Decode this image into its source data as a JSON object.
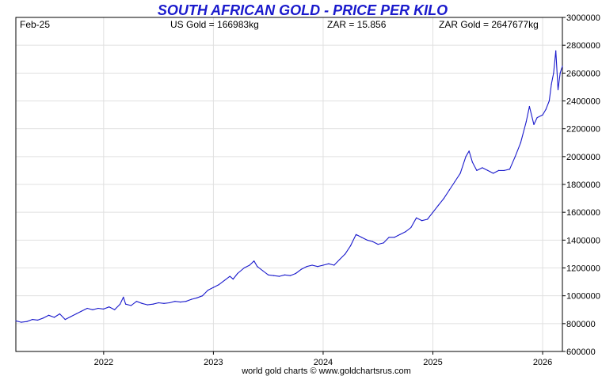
{
  "colors": {
    "line": "#1a1acc",
    "title": "#1a1acc",
    "grid": "#e0e0e0",
    "frame": "#000000"
  },
  "chart_data": {
    "type": "line",
    "title": "SOUTH AFRICAN GOLD - PRICE PER KILO",
    "header": {
      "date": "Feb-25",
      "us_gold": "US Gold = 166983kg",
      "zar": "ZAR = 15.856",
      "zar_gold": "ZAR Gold = 2647677kg"
    },
    "credit": "world gold charts © www.goldchartsrus.com",
    "xlim": [
      2021.2,
      2026.18
    ],
    "ylim": [
      600000,
      3000000
    ],
    "grid": true,
    "x_ticks": [
      {
        "value": 2022,
        "label": "2022"
      },
      {
        "value": 2023,
        "label": "2023"
      },
      {
        "value": 2024,
        "label": "2024"
      },
      {
        "value": 2025,
        "label": "2025"
      },
      {
        "value": 2026,
        "label": "2026"
      }
    ],
    "y_ticks": [
      {
        "value": 600000,
        "label": "600000"
      },
      {
        "value": 800000,
        "label": "800000"
      },
      {
        "value": 1000000,
        "label": "1000000"
      },
      {
        "value": 1200000,
        "label": "1200000"
      },
      {
        "value": 1400000,
        "label": "1400000"
      },
      {
        "value": 1600000,
        "label": "1600000"
      },
      {
        "value": 1800000,
        "label": "1800000"
      },
      {
        "value": 2000000,
        "label": "2000000"
      },
      {
        "value": 2200000,
        "label": "2200000"
      },
      {
        "value": 2400000,
        "label": "2400000"
      },
      {
        "value": 2600000,
        "label": "2600000"
      },
      {
        "value": 2800000,
        "label": "2800000"
      },
      {
        "value": 3000000,
        "label": "3000000"
      }
    ],
    "series": [
      {
        "points": [
          [
            2021.2,
            820000
          ],
          [
            2021.25,
            810000
          ],
          [
            2021.3,
            815000
          ],
          [
            2021.35,
            830000
          ],
          [
            2021.4,
            825000
          ],
          [
            2021.45,
            840000
          ],
          [
            2021.5,
            860000
          ],
          [
            2021.55,
            845000
          ],
          [
            2021.6,
            870000
          ],
          [
            2021.65,
            830000
          ],
          [
            2021.7,
            850000
          ],
          [
            2021.75,
            870000
          ],
          [
            2021.8,
            890000
          ],
          [
            2021.85,
            910000
          ],
          [
            2021.9,
            900000
          ],
          [
            2021.95,
            910000
          ],
          [
            2022.0,
            905000
          ],
          [
            2022.05,
            920000
          ],
          [
            2022.1,
            900000
          ],
          [
            2022.15,
            940000
          ],
          [
            2022.18,
            990000
          ],
          [
            2022.2,
            940000
          ],
          [
            2022.25,
            930000
          ],
          [
            2022.3,
            960000
          ],
          [
            2022.35,
            945000
          ],
          [
            2022.4,
            935000
          ],
          [
            2022.45,
            940000
          ],
          [
            2022.5,
            950000
          ],
          [
            2022.55,
            945000
          ],
          [
            2022.6,
            950000
          ],
          [
            2022.65,
            960000
          ],
          [
            2022.7,
            955000
          ],
          [
            2022.75,
            960000
          ],
          [
            2022.8,
            975000
          ],
          [
            2022.85,
            985000
          ],
          [
            2022.9,
            1000000
          ],
          [
            2022.95,
            1040000
          ],
          [
            2023.0,
            1060000
          ],
          [
            2023.05,
            1080000
          ],
          [
            2023.1,
            1110000
          ],
          [
            2023.15,
            1140000
          ],
          [
            2023.18,
            1120000
          ],
          [
            2023.22,
            1160000
          ],
          [
            2023.28,
            1200000
          ],
          [
            2023.33,
            1220000
          ],
          [
            2023.37,
            1250000
          ],
          [
            2023.4,
            1210000
          ],
          [
            2023.45,
            1180000
          ],
          [
            2023.5,
            1150000
          ],
          [
            2023.55,
            1145000
          ],
          [
            2023.6,
            1140000
          ],
          [
            2023.65,
            1150000
          ],
          [
            2023.7,
            1145000
          ],
          [
            2023.75,
            1160000
          ],
          [
            2023.8,
            1190000
          ],
          [
            2023.85,
            1210000
          ],
          [
            2023.9,
            1220000
          ],
          [
            2023.95,
            1210000
          ],
          [
            2024.0,
            1220000
          ],
          [
            2024.05,
            1230000
          ],
          [
            2024.1,
            1220000
          ],
          [
            2024.15,
            1260000
          ],
          [
            2024.2,
            1300000
          ],
          [
            2024.25,
            1360000
          ],
          [
            2024.3,
            1440000
          ],
          [
            2024.35,
            1420000
          ],
          [
            2024.4,
            1400000
          ],
          [
            2024.45,
            1390000
          ],
          [
            2024.5,
            1370000
          ],
          [
            2024.55,
            1380000
          ],
          [
            2024.6,
            1420000
          ],
          [
            2024.65,
            1420000
          ],
          [
            2024.7,
            1440000
          ],
          [
            2024.75,
            1460000
          ],
          [
            2024.8,
            1490000
          ],
          [
            2024.85,
            1560000
          ],
          [
            2024.9,
            1540000
          ],
          [
            2024.95,
            1550000
          ],
          [
            2025.0,
            1600000
          ],
          [
            2025.05,
            1650000
          ],
          [
            2025.1,
            1700000
          ],
          [
            2025.15,
            1760000
          ],
          [
            2025.2,
            1820000
          ],
          [
            2025.25,
            1880000
          ],
          [
            2025.3,
            2000000
          ],
          [
            2025.33,
            2040000
          ],
          [
            2025.36,
            1960000
          ],
          [
            2025.4,
            1900000
          ],
          [
            2025.45,
            1920000
          ],
          [
            2025.5,
            1900000
          ],
          [
            2025.55,
            1880000
          ],
          [
            2025.6,
            1900000
          ],
          [
            2025.65,
            1900000
          ],
          [
            2025.7,
            1910000
          ],
          [
            2025.75,
            2000000
          ],
          [
            2025.8,
            2100000
          ],
          [
            2025.85,
            2250000
          ],
          [
            2025.88,
            2360000
          ],
          [
            2025.92,
            2230000
          ],
          [
            2025.95,
            2280000
          ],
          [
            2026.0,
            2300000
          ],
          [
            2026.03,
            2340000
          ],
          [
            2026.06,
            2400000
          ],
          [
            2026.08,
            2520000
          ],
          [
            2026.1,
            2600000
          ],
          [
            2026.12,
            2760000
          ],
          [
            2026.14,
            2480000
          ],
          [
            2026.16,
            2600000
          ],
          [
            2026.18,
            2650000
          ]
        ]
      }
    ]
  }
}
